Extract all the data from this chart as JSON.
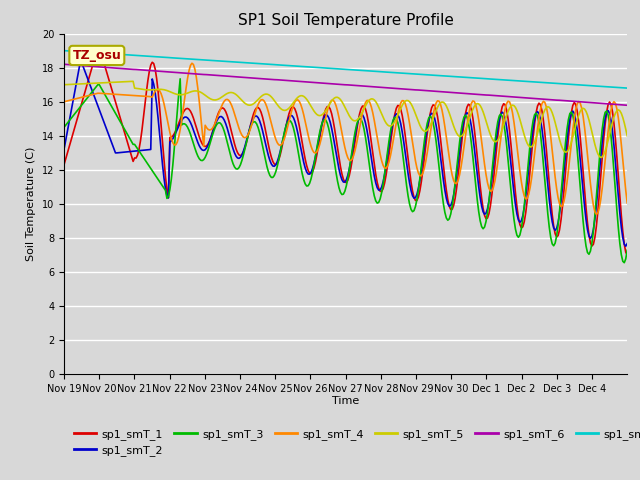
{
  "title": "SP1 Soil Temperature Profile",
  "xlabel": "Time",
  "ylabel": "Soil Temperature (C)",
  "ylim": [
    0,
    20
  ],
  "yticks": [
    0,
    2,
    4,
    6,
    8,
    10,
    12,
    14,
    16,
    18,
    20
  ],
  "plot_bg_color": "#d8d8d8",
  "fig_bg_color": "#d8d8d8",
  "annotation_text": "TZ_osu",
  "annotation_color": "#aa0000",
  "annotation_bg": "#ffffcc",
  "annotation_border": "#aaaa00",
  "series_colors": {
    "sp1_smT_1": "#dd0000",
    "sp1_smT_2": "#0000cc",
    "sp1_smT_3": "#00bb00",
    "sp1_smT_4": "#ff8800",
    "sp1_smT_5": "#cccc00",
    "sp1_smT_6": "#aa00aa",
    "sp1_smT_7": "#00cccc"
  },
  "xtick_labels": [
    "Nov 19",
    "Nov 20",
    "Nov 21",
    "Nov 22",
    "Nov 23",
    "Nov 24",
    "Nov 25",
    "Nov 26",
    "Nov 27",
    "Nov 28",
    "Nov 29",
    "Nov 30",
    "Dec 1",
    "Dec 2",
    "Dec 3",
    "Dec 4"
  ],
  "title_fontsize": 11,
  "label_fontsize": 8,
  "tick_fontsize": 7,
  "legend_fontsize": 8,
  "linewidth": 1.2
}
